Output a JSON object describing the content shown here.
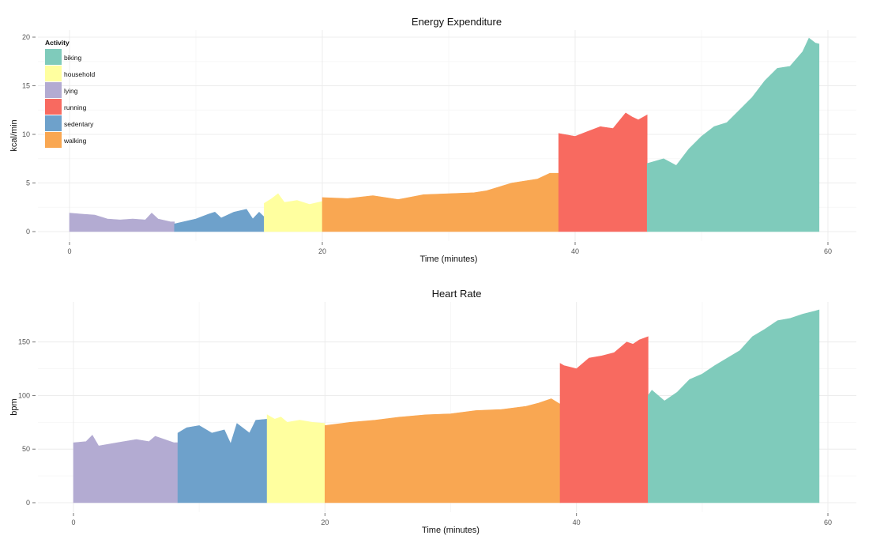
{
  "colors": {
    "biking": "#7fcbbb",
    "household": "#ffff9f",
    "lying": "#b3abd2",
    "running": "#f86a60",
    "sedentary": "#6ea1cb",
    "walking": "#f9a752"
  },
  "legend": {
    "title": "Activity",
    "items": [
      "biking",
      "household",
      "lying",
      "running",
      "sedentary",
      "walking"
    ]
  },
  "chart_data": [
    {
      "type": "area",
      "title": "Energy Expenditure",
      "xlabel": "Time (minutes)",
      "ylabel": "kcal/min",
      "xlim": [
        0,
        60
      ],
      "ylim": [
        0,
        20
      ],
      "xticks": [
        0,
        20,
        40,
        60
      ],
      "yticks": [
        0,
        5,
        10,
        15,
        20
      ],
      "grid": true,
      "legend_position": "top-left",
      "series": [
        {
          "name": "lying",
          "x": [
            0,
            1,
            2,
            3,
            4,
            5,
            6,
            6.5,
            7,
            8,
            8.3
          ],
          "y": [
            1.9,
            1.8,
            1.7,
            1.3,
            1.2,
            1.3,
            1.2,
            1.9,
            1.3,
            1.0,
            1.0
          ]
        },
        {
          "name": "sedentary",
          "x": [
            8.3,
            9,
            10,
            11,
            11.5,
            12,
            13,
            14,
            14.5,
            15,
            15.4
          ],
          "y": [
            0.8,
            1.0,
            1.3,
            1.8,
            2.0,
            1.4,
            2.0,
            2.3,
            1.3,
            2.0,
            1.5
          ]
        },
        {
          "name": "household",
          "x": [
            15.4,
            16,
            16.5,
            17,
            18,
            19,
            20
          ],
          "y": [
            2.9,
            3.4,
            3.9,
            3.0,
            3.2,
            2.8,
            3.1
          ]
        },
        {
          "name": "walking",
          "x": [
            20,
            22,
            24,
            26,
            28,
            30,
            32,
            33,
            34,
            35,
            36,
            37,
            38,
            38.7
          ],
          "y": [
            3.5,
            3.4,
            3.7,
            3.3,
            3.8,
            3.9,
            4.0,
            4.2,
            4.6,
            5.0,
            5.2,
            5.4,
            6.0,
            6.0
          ]
        },
        {
          "name": "running",
          "x": [
            38.7,
            40,
            41,
            42,
            43,
            44,
            44.5,
            45,
            45.7
          ],
          "y": [
            10.1,
            9.8,
            10.3,
            10.8,
            10.6,
            12.2,
            11.8,
            11.5,
            12.0
          ]
        },
        {
          "name": "biking",
          "x": [
            45.7,
            47,
            48,
            49,
            50,
            51,
            52,
            53,
            54,
            55,
            56,
            57,
            58,
            58.5,
            59,
            59.3
          ],
          "y": [
            7.0,
            7.5,
            6.8,
            8.5,
            9.8,
            10.8,
            11.2,
            12.5,
            13.8,
            15.5,
            16.8,
            17.0,
            18.5,
            19.9,
            19.4,
            19.3
          ]
        }
      ]
    },
    {
      "type": "area",
      "title": "Heart Rate",
      "xlabel": "Time (minutes)",
      "ylabel": "bpm",
      "xlim": [
        0,
        60
      ],
      "ylim": [
        0,
        180
      ],
      "xticks": [
        0,
        20,
        40,
        60
      ],
      "yticks": [
        0,
        50,
        100,
        150
      ],
      "grid": true,
      "series": [
        {
          "name": "lying",
          "x": [
            0,
            1,
            1.5,
            2,
            3,
            4,
            5,
            6,
            6.5,
            7,
            8,
            8.3
          ],
          "y": [
            56,
            57,
            63,
            53,
            55,
            57,
            59,
            57,
            62,
            60,
            56,
            56
          ]
        },
        {
          "name": "sedentary",
          "x": [
            8.3,
            9,
            10,
            11,
            12,
            12.5,
            13,
            14,
            14.5,
            15.4
          ],
          "y": [
            65,
            70,
            72,
            65,
            68,
            55,
            74,
            65,
            77,
            78
          ]
        },
        {
          "name": "household",
          "x": [
            15.4,
            16,
            16.5,
            17,
            18,
            19,
            20
          ],
          "y": [
            82,
            78,
            80,
            75,
            77,
            75,
            74
          ]
        },
        {
          "name": "walking",
          "x": [
            20,
            22,
            24,
            26,
            28,
            30,
            32,
            34,
            36,
            37,
            38,
            38.7
          ],
          "y": [
            72,
            75,
            77,
            80,
            82,
            83,
            86,
            87,
            90,
            93,
            97,
            92
          ]
        },
        {
          "name": "running",
          "x": [
            38.7,
            39,
            40,
            41,
            42,
            43,
            44,
            44.5,
            45,
            45.7
          ],
          "y": [
            130,
            128,
            125,
            135,
            137,
            140,
            150,
            148,
            152,
            155
          ]
        },
        {
          "name": "biking",
          "x": [
            45.7,
            46,
            47,
            48,
            49,
            50,
            51,
            52,
            53,
            54,
            55,
            56,
            57,
            58,
            59,
            59.3
          ],
          "y": [
            100,
            105,
            95,
            103,
            115,
            120,
            128,
            135,
            142,
            155,
            162,
            170,
            172,
            176,
            179,
            180
          ]
        }
      ]
    }
  ]
}
